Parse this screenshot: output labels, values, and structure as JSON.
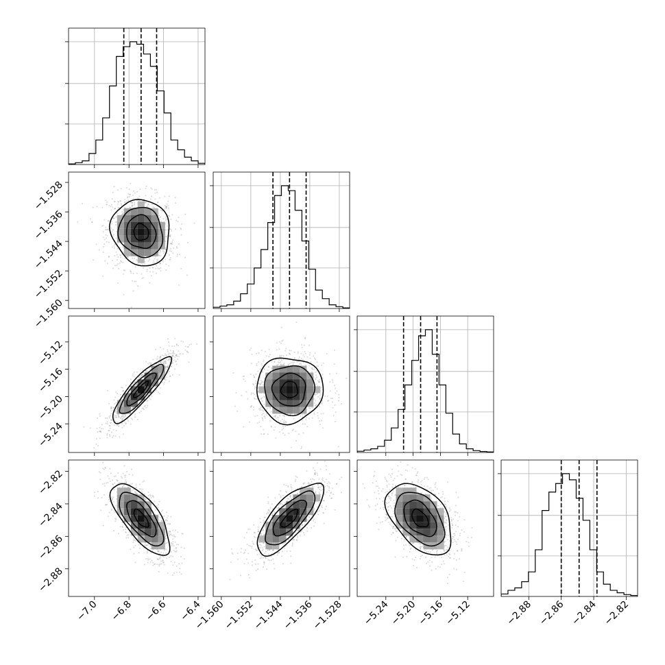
{
  "chart_data": {
    "type": "corner",
    "parameters": [
      {
        "id": "p1",
        "label": "",
        "mean": -6.73,
        "std": 0.085,
        "quantiles": [
          -6.83,
          -6.73,
          -6.64
        ],
        "range": [
          -7.15,
          -6.36
        ],
        "ticks": [
          -7.0,
          -6.8,
          -6.6,
          -6.4
        ],
        "tick_labels": [
          "−7.0",
          "−6.8",
          "−6.6",
          "−6.4"
        ],
        "hist_counts": [
          0.005,
          0.015,
          0.03,
          0.09,
          0.2,
          0.38,
          0.64,
          0.88,
          0.96,
          1.0,
          0.98,
          0.9,
          0.8,
          0.6,
          0.42,
          0.2,
          0.12,
          0.06,
          0.03,
          0.01
        ]
      },
      {
        "id": "p2",
        "label": "",
        "mean": -1.5415,
        "std": 0.0045,
        "quantiles": [
          -1.546,
          -1.5415,
          -1.537
        ],
        "range": [
          -1.5622,
          -1.5252
        ],
        "ticks": [
          -1.56,
          -1.552,
          -1.544,
          -1.536,
          -1.528
        ],
        "tick_labels": [
          "−1.560",
          "−1.552",
          "−1.544",
          "−1.536",
          "−1.528"
        ],
        "hist_counts": [
          0.01,
          0.02,
          0.03,
          0.06,
          0.12,
          0.2,
          0.33,
          0.48,
          0.7,
          0.92,
          1.0,
          0.96,
          0.8,
          0.55,
          0.32,
          0.15,
          0.08,
          0.03,
          0.015,
          0.005
        ]
      },
      {
        "id": "p3",
        "label": "",
        "mean": -5.19,
        "std": 0.024,
        "quantiles": [
          -5.214,
          -5.189,
          -5.165
        ],
        "range": [
          -5.282,
          -5.082
        ],
        "ticks": [
          -5.24,
          -5.2,
          -5.16,
          -5.12
        ],
        "tick_labels": [
          "−5.24",
          "−5.20",
          "−5.16",
          "−5.12"
        ],
        "hist_counts": [
          0.01,
          0.02,
          0.03,
          0.05,
          0.1,
          0.2,
          0.35,
          0.55,
          0.75,
          0.95,
          1.0,
          0.8,
          0.55,
          0.32,
          0.15,
          0.07,
          0.03,
          0.015,
          0.008,
          0.004
        ]
      },
      {
        "id": "p4",
        "label": "",
        "mean": -2.849,
        "std": 0.011,
        "quantiles": [
          -2.86,
          -2.849,
          -2.838
        ],
        "range": [
          -2.897,
          -2.813
        ],
        "ticks": [
          -2.88,
          -2.86,
          -2.84,
          -2.82
        ],
        "tick_labels": [
          "−2.88",
          "−2.86",
          "−2.84",
          "−2.82"
        ],
        "hist_counts": [
          0.02,
          0.05,
          0.07,
          0.12,
          0.2,
          0.38,
          0.7,
          0.85,
          0.92,
          1.0,
          0.95,
          0.8,
          0.62,
          0.38,
          0.2,
          0.1,
          0.05,
          0.03,
          0.015,
          0.008
        ]
      }
    ],
    "pairs": [
      {
        "row": 1,
        "col": 0,
        "corr": -0.1
      },
      {
        "row": 2,
        "col": 0,
        "corr": 0.88
      },
      {
        "row": 2,
        "col": 1,
        "corr": 0.0
      },
      {
        "row": 3,
        "col": 0,
        "corr": -0.7
      },
      {
        "row": 3,
        "col": 1,
        "corr": 0.75
      },
      {
        "row": 3,
        "col": 2,
        "corr": -0.45
      }
    ],
    "contour_levels": [
      0.5,
      1.0,
      1.5,
      2.0
    ],
    "grid": true,
    "quantile_lines": "dashed"
  }
}
